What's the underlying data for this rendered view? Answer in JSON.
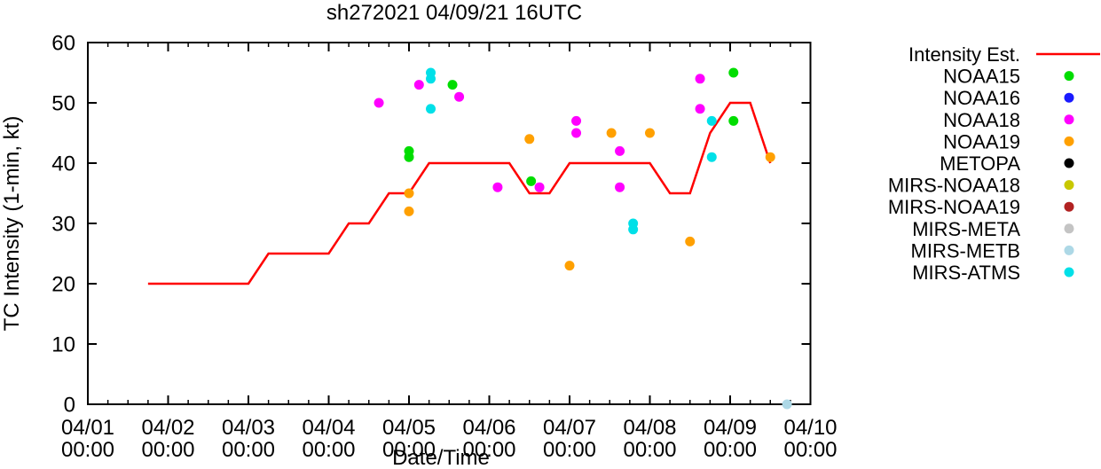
{
  "chart_data": {
    "type": "line+scatter",
    "title": "sh272021 04/09/21 16UTC",
    "xlabel": "Date/Time",
    "ylabel": "TC Intensity (1-min, kt)",
    "ylim": [
      0,
      60
    ],
    "yticks": [
      0,
      10,
      20,
      30,
      40,
      50,
      60
    ],
    "xlim": [
      "04/01 00:00",
      "04/10 00:00"
    ],
    "xticks": [
      "04/01",
      "04/02",
      "04/03",
      "04/04",
      "04/05",
      "04/06",
      "04/07",
      "04/08",
      "04/09",
      "04/10"
    ],
    "xtick_second_line": "00:00",
    "minor_tick_hours": 6,
    "grid": false,
    "legend_position": "right-outside",
    "line_series": {
      "name": "Intensity Est.",
      "color": "#ff0000",
      "points": [
        [
          "04/01 18:00",
          20
        ],
        [
          "04/03 00:00",
          20
        ],
        [
          "04/03 06:00",
          25
        ],
        [
          "04/04 00:00",
          25
        ],
        [
          "04/04 06:00",
          30
        ],
        [
          "04/04 12:00",
          30
        ],
        [
          "04/04 18:00",
          35
        ],
        [
          "04/05 00:00",
          35
        ],
        [
          "04/05 06:00",
          40
        ],
        [
          "04/06 06:00",
          40
        ],
        [
          "04/06 12:00",
          35
        ],
        [
          "04/06 18:00",
          35
        ],
        [
          "04/07 00:00",
          40
        ],
        [
          "04/08 00:00",
          40
        ],
        [
          "04/08 06:00",
          35
        ],
        [
          "04/08 12:00",
          35
        ],
        [
          "04/08 18:00",
          45
        ],
        [
          "04/09 00:00",
          50
        ],
        [
          "04/09 06:00",
          50
        ],
        [
          "04/09 12:00",
          40
        ]
      ]
    },
    "scatter_series": [
      {
        "name": "NOAA15",
        "color": "#00dd00",
        "points": [
          [
            "04/05 00:00",
            42
          ],
          [
            "04/05 00:00",
            41
          ],
          [
            "04/05 13:00",
            53
          ],
          [
            "04/06 12:30",
            37
          ],
          [
            "04/09 01:00",
            55
          ],
          [
            "04/09 01:00",
            47
          ]
        ]
      },
      {
        "name": "NOAA16",
        "color": "#1a1aff",
        "points": []
      },
      {
        "name": "NOAA18",
        "color": "#ff00ff",
        "points": [
          [
            "04/04 15:00",
            50
          ],
          [
            "04/05 03:00",
            53
          ],
          [
            "04/05 15:00",
            51
          ],
          [
            "04/06 02:30",
            36
          ],
          [
            "04/06 15:00",
            36
          ],
          [
            "04/07 02:00",
            47
          ],
          [
            "04/07 02:00",
            45
          ],
          [
            "04/07 15:00",
            42
          ],
          [
            "04/07 15:00",
            36
          ],
          [
            "04/08 15:00",
            54
          ],
          [
            "04/08 15:00",
            49
          ]
        ]
      },
      {
        "name": "NOAA19",
        "color": "#ffa000",
        "points": [
          [
            "04/05 00:00",
            35
          ],
          [
            "04/05 00:00",
            32
          ],
          [
            "04/06 12:00",
            44
          ],
          [
            "04/07 00:00",
            23
          ],
          [
            "04/07 12:30",
            45
          ],
          [
            "04/08 00:00",
            45
          ],
          [
            "04/08 12:00",
            27
          ],
          [
            "04/09 12:00",
            41
          ]
        ]
      },
      {
        "name": "METOPA",
        "color": "#000000",
        "points": []
      },
      {
        "name": "MIRS-NOAA18",
        "color": "#c8c800",
        "points": []
      },
      {
        "name": "MIRS-NOAA19",
        "color": "#b22222",
        "points": []
      },
      {
        "name": "MIRS-META",
        "color": "#c4c4c4",
        "points": []
      },
      {
        "name": "MIRS-METB",
        "color": "#add8e6",
        "points": [
          [
            "04/09 17:00",
            0
          ]
        ]
      },
      {
        "name": "MIRS-ATMS",
        "color": "#00e0e8",
        "points": [
          [
            "04/05 06:30",
            55
          ],
          [
            "04/05 06:30",
            54
          ],
          [
            "04/05 06:30",
            49
          ],
          [
            "04/07 19:00",
            30
          ],
          [
            "04/07 19:00",
            29
          ],
          [
            "04/08 18:30",
            47
          ],
          [
            "04/08 18:30",
            41
          ]
        ]
      }
    ]
  }
}
